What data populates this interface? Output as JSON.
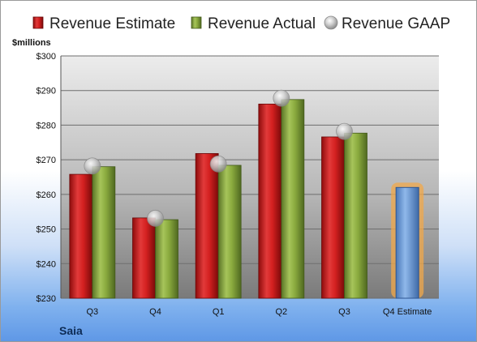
{
  "chart_data": {
    "type": "bar",
    "categories": [
      "Q3",
      "Q4",
      "Q1",
      "Q2",
      "Q3",
      "Q4 Estimate"
    ],
    "series": [
      {
        "name": "Revenue Estimate",
        "kind": "bar",
        "values": [
          265.8,
          253.2,
          271.8,
          286.1,
          276.6,
          262.0
        ]
      },
      {
        "name": "Revenue Actual",
        "kind": "bar",
        "values": [
          268.0,
          252.7,
          268.4,
          287.4,
          277.7,
          null
        ]
      },
      {
        "name": "Revenue GAAP",
        "kind": "marker",
        "values": [
          268.2,
          253.1,
          268.8,
          287.8,
          278.2,
          null
        ]
      }
    ],
    "ylabel": "$millions",
    "ylim": [
      230,
      300
    ],
    "y_ticks": [
      "$230",
      "$240",
      "$250",
      "$260",
      "$270",
      "$280",
      "$290",
      "$300"
    ],
    "company": "Saia",
    "grid": true,
    "legend_position": "top",
    "colors": {
      "estimate": "#d01f1f",
      "actual": "#86a83a",
      "gaap": "#b8b8b8",
      "forecast": "#6f9fd8",
      "forecast_glow": "#f2a84a",
      "plot_top": "#e6e6e6",
      "plot_bottom": "#7f7f7f"
    }
  }
}
